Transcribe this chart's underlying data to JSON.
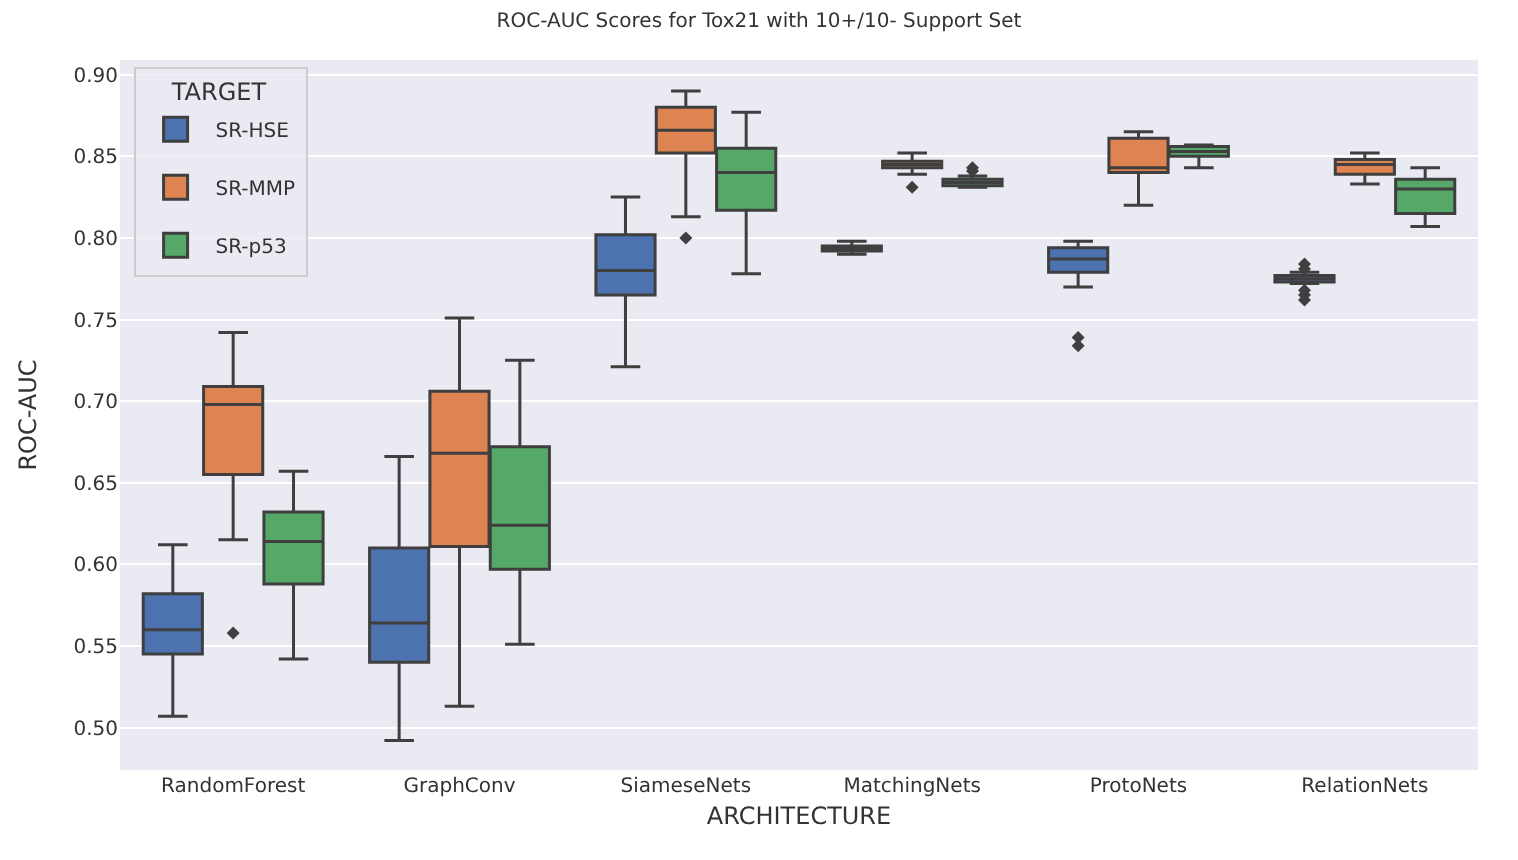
{
  "chart_data": {
    "type": "box",
    "title": "ROC-AUC Scores for Tox21 with 10+/10- Support Set",
    "xlabel": "ARCHITECTURE",
    "ylabel": "ROC-AUC",
    "categories": [
      "RandomForest",
      "GraphConv",
      "SiameseNets",
      "MatchingNets",
      "ProtoNets",
      "RelationNets"
    ],
    "legend_title": "TARGET",
    "legend": "top left",
    "grid": "y",
    "ylim": [
      0.474,
      0.909
    ],
    "yticks": [
      {
        "value": 0.5,
        "label": "0.50"
      },
      0.55,
      {
        "value": 0.6,
        "label": "0.60"
      },
      0.65,
      {
        "value": 0.7,
        "label": "0.70"
      },
      0.75,
      {
        "value": 0.8,
        "label": "0.80"
      },
      0.85,
      {
        "value": 0.9,
        "label": "0.90"
      }
    ],
    "series": [
      {
        "name": "SR-HSE",
        "color": "#4c72b0",
        "boxes": [
          {
            "low": 0.507,
            "q1": 0.545,
            "median": 0.56,
            "q3": 0.582,
            "high": 0.612
          },
          {
            "low": 0.492,
            "q1": 0.54,
            "median": 0.564,
            "q3": 0.61,
            "high": 0.666
          },
          {
            "low": 0.721,
            "q1": 0.765,
            "median": 0.78,
            "q3": 0.802,
            "high": 0.825
          },
          {
            "low": 0.79,
            "q1": 0.792,
            "median": 0.793,
            "q3": 0.795,
            "high": 0.798
          },
          {
            "low": 0.77,
            "q1": 0.779,
            "median": 0.787,
            "q3": 0.794,
            "high": 0.798,
            "outliers": [
              0.734,
              0.739
            ]
          },
          {
            "low": 0.772,
            "q1": 0.773,
            "median": 0.775,
            "q3": 0.777,
            "high": 0.779,
            "outliers": [
              0.762,
              0.765,
              0.768,
              0.781,
              0.784
            ]
          }
        ]
      },
      {
        "name": "SR-MMP",
        "color": "#dd8452",
        "boxes": [
          {
            "low": 0.615,
            "q1": 0.655,
            "median": 0.698,
            "q3": 0.709,
            "high": 0.742,
            "outliers": [
              0.558
            ]
          },
          {
            "low": 0.513,
            "q1": 0.611,
            "median": 0.668,
            "q3": 0.706,
            "high": 0.751
          },
          {
            "low": 0.813,
            "q1": 0.852,
            "median": 0.866,
            "q3": 0.88,
            "high": 0.89,
            "outliers": [
              0.8
            ]
          },
          {
            "low": 0.839,
            "q1": 0.843,
            "median": 0.845,
            "q3": 0.847,
            "high": 0.852,
            "outliers": [
              0.831
            ]
          },
          {
            "low": 0.82,
            "q1": 0.84,
            "median": 0.843,
            "q3": 0.861,
            "high": 0.865
          },
          {
            "low": 0.833,
            "q1": 0.839,
            "median": 0.845,
            "q3": 0.848,
            "high": 0.852
          }
        ]
      },
      {
        "name": "SR-p53",
        "color": "#55a868",
        "boxes": [
          {
            "low": 0.542,
            "q1": 0.588,
            "median": 0.614,
            "q3": 0.632,
            "high": 0.657
          },
          {
            "low": 0.551,
            "q1": 0.597,
            "median": 0.624,
            "q3": 0.672,
            "high": 0.725
          },
          {
            "low": 0.778,
            "q1": 0.817,
            "median": 0.84,
            "q3": 0.855,
            "high": 0.877
          },
          {
            "low": 0.831,
            "q1": 0.832,
            "median": 0.834,
            "q3": 0.836,
            "high": 0.838,
            "outliers": [
              0.841,
              0.843
            ]
          },
          {
            "low": 0.843,
            "q1": 0.85,
            "median": 0.853,
            "q3": 0.856,
            "high": 0.857
          },
          {
            "low": 0.807,
            "q1": 0.815,
            "median": 0.83,
            "q3": 0.836,
            "high": 0.843
          }
        ]
      }
    ]
  }
}
